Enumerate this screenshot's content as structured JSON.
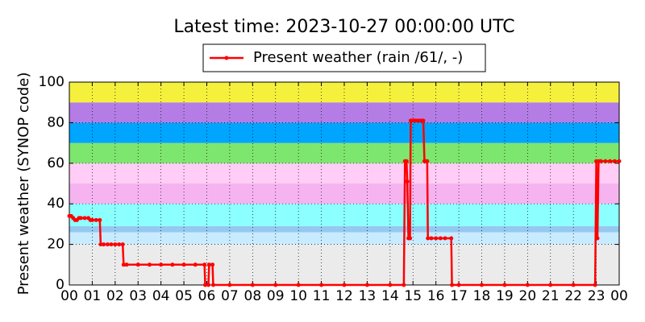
{
  "chart_data": {
    "type": "line",
    "title": "Latest time: 2023-10-27 00:00:00 UTC",
    "y_label": "Present weather (SYNOP code)",
    "xlim": [
      0,
      24
    ],
    "xticks": [
      {
        "value": 0,
        "label": "00"
      },
      {
        "value": 1,
        "label": "01"
      },
      {
        "value": 2,
        "label": "02"
      },
      {
        "value": 3,
        "label": "03"
      },
      {
        "value": 4,
        "label": "04"
      },
      {
        "value": 5,
        "label": "05"
      },
      {
        "value": 6,
        "label": "06"
      },
      {
        "value": 7,
        "label": "07"
      },
      {
        "value": 8,
        "label": "08"
      },
      {
        "value": 9,
        "label": "09"
      },
      10,
      11,
      12,
      13,
      14,
      15,
      16,
      17,
      18,
      19,
      20,
      21,
      22,
      23,
      {
        "value": 24,
        "label": "00"
      }
    ],
    "ylim": [
      0,
      100
    ],
    "yticks": [
      0,
      20,
      40,
      60,
      80,
      100
    ],
    "grid": true,
    "legend": "upper center",
    "bands": [
      {
        "from": 0,
        "to": 20,
        "color": "#ebebeb"
      },
      {
        "from": 20,
        "to": 26,
        "color": "#c8ebff"
      },
      {
        "from": 26,
        "to": 29,
        "color": "#96c8f0"
      },
      {
        "from": 29,
        "to": 40,
        "color": "#8cffff"
      },
      {
        "from": 40,
        "to": 50,
        "color": "#f5b4f0"
      },
      {
        "from": 50,
        "to": 60,
        "color": "#ffcdf5"
      },
      {
        "from": 60,
        "to": 70,
        "color": "#7de66e"
      },
      {
        "from": 70,
        "to": 80,
        "color": "#00a5ff"
      },
      {
        "from": 80,
        "to": 90,
        "color": "#b47de6"
      },
      {
        "from": 90,
        "to": 100,
        "color": "#f5f03c"
      }
    ],
    "x": [
      0,
      0.08,
      0.17,
      0.25,
      0.33,
      0.42,
      0.5,
      0.67,
      0.83,
      0.92,
      1.0,
      1.17,
      1.33,
      1.37,
      1.5,
      1.67,
      1.83,
      2.0,
      2.17,
      2.33,
      2.37,
      2.5,
      3,
      3.5,
      4,
      4.5,
      5,
      5.5,
      5.9,
      5.93,
      6.07,
      6.1,
      6.25,
      6.28,
      7,
      8,
      9,
      10,
      11,
      12,
      13,
      14,
      14.6,
      14.65,
      14.72,
      14.75,
      14.8,
      14.87,
      14.9,
      15.0,
      15.1,
      15.2,
      15.3,
      15.4,
      15.45,
      15.5,
      15.55,
      15.62,
      15.65,
      15.8,
      16.0,
      16.2,
      16.4,
      16.67,
      16.7,
      17,
      18,
      19,
      20,
      21,
      22,
      22.95,
      23.0,
      23.05,
      23.1,
      23.2,
      23.4,
      23.6,
      23.8,
      24
    ],
    "series": [
      {
        "name": "Present weather (rain /61/, -)",
        "color": "#ff0000",
        "values": [
          34,
          34,
          33,
          32,
          32,
          33,
          33,
          33,
          33,
          32,
          32,
          32,
          32,
          20,
          20,
          20,
          20,
          20,
          20,
          20,
          10,
          10,
          10,
          10,
          10,
          10,
          10,
          10,
          10,
          0,
          0,
          10,
          10,
          0,
          0,
          0,
          0,
          0,
          0,
          0,
          0,
          0,
          0,
          61,
          61,
          51,
          23,
          23,
          81,
          81,
          81,
          81,
          81,
          81,
          81,
          61,
          61,
          61,
          23,
          23,
          23,
          23,
          23,
          23,
          0,
          0,
          0,
          0,
          0,
          0,
          0,
          0,
          61,
          23,
          61,
          61,
          61,
          61,
          61,
          61
        ]
      }
    ]
  }
}
